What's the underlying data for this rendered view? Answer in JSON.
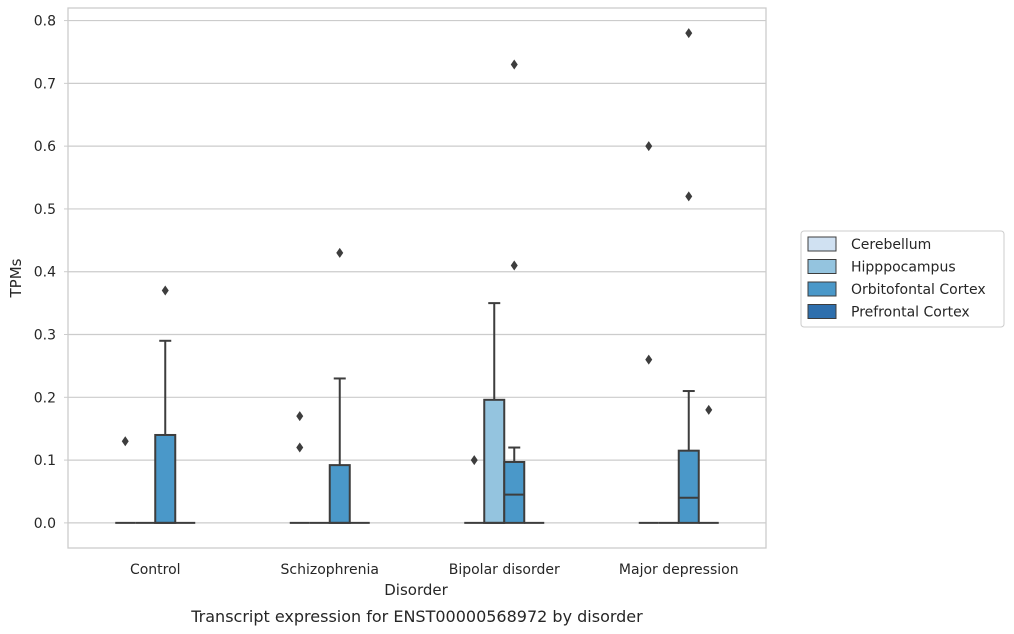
{
  "caption": "Transcript expression for ENST00000568972 by disorder",
  "chart_data": {
    "type": "box",
    "title": "",
    "xlabel": "Disorder",
    "ylabel": "TPMs",
    "ylim": [
      -0.04,
      0.82
    ],
    "yticks": [
      0.0,
      0.1,
      0.2,
      0.3,
      0.4,
      0.5,
      0.6,
      0.7,
      0.8
    ],
    "ytick_labels": [
      "0.0",
      "0.1",
      "0.2",
      "0.3",
      "0.4",
      "0.5",
      "0.6",
      "0.7",
      "0.8"
    ],
    "grid": "horizontal",
    "legend_position": "right",
    "categories": [
      "Control",
      "Schizophrenia",
      "Bipolar disorder",
      "Major depression"
    ],
    "series": [
      {
        "name": "Cerebellum",
        "color": "#d0e1f2",
        "boxes": [
          {
            "q1": 0,
            "median": 0,
            "q3": 0,
            "whisker_low": 0,
            "whisker_high": 0,
            "outliers": [
              0.13
            ]
          },
          {
            "q1": 0,
            "median": 0,
            "q3": 0,
            "whisker_low": 0,
            "whisker_high": 0,
            "outliers": [
              0.12,
              0.17
            ]
          },
          {
            "q1": 0,
            "median": 0,
            "q3": 0,
            "whisker_low": 0,
            "whisker_high": 0,
            "outliers": [
              0.1
            ]
          },
          {
            "q1": 0,
            "median": 0,
            "q3": 0,
            "whisker_low": 0,
            "whisker_high": 0,
            "outliers": [
              0.26,
              0.6
            ]
          }
        ]
      },
      {
        "name": "Hipppocampus",
        "color": "#94c4df",
        "boxes": [
          {
            "q1": 0,
            "median": 0,
            "q3": 0,
            "whisker_low": 0,
            "whisker_high": 0,
            "outliers": []
          },
          {
            "q1": 0,
            "median": 0,
            "q3": 0,
            "whisker_low": 0,
            "whisker_high": 0,
            "outliers": []
          },
          {
            "q1": 0,
            "median": 0,
            "q3": 0.196,
            "whisker_low": 0,
            "whisker_high": 0.35,
            "outliers": []
          },
          {
            "q1": 0,
            "median": 0,
            "q3": 0,
            "whisker_low": 0,
            "whisker_high": 0,
            "outliers": []
          }
        ]
      },
      {
        "name": "Orbitofontal Cortex",
        "color": "#4a98c9",
        "boxes": [
          {
            "q1": 0,
            "median": 0,
            "q3": 0.14,
            "whisker_low": 0,
            "whisker_high": 0.29,
            "outliers": [
              0.37
            ]
          },
          {
            "q1": 0,
            "median": 0,
            "q3": 0.092,
            "whisker_low": 0,
            "whisker_high": 0.23,
            "outliers": [
              0.43
            ]
          },
          {
            "q1": 0,
            "median": 0.045,
            "q3": 0.097,
            "whisker_low": 0,
            "whisker_high": 0.12,
            "outliers": [
              0.41,
              0.73
            ]
          },
          {
            "q1": 0,
            "median": 0.04,
            "q3": 0.115,
            "whisker_low": 0,
            "whisker_high": 0.21,
            "outliers": [
              0.52,
              0.78
            ]
          }
        ]
      },
      {
        "name": "Prefrontal Cortex",
        "color": "#2e6fad",
        "boxes": [
          {
            "q1": 0,
            "median": 0,
            "q3": 0,
            "whisker_low": 0,
            "whisker_high": 0,
            "outliers": []
          },
          {
            "q1": 0,
            "median": 0,
            "q3": 0,
            "whisker_low": 0,
            "whisker_high": 0,
            "outliers": []
          },
          {
            "q1": 0,
            "median": 0,
            "q3": 0,
            "whisker_low": 0,
            "whisker_high": 0,
            "outliers": []
          },
          {
            "q1": 0,
            "median": 0,
            "q3": 0,
            "whisker_low": 0,
            "whisker_high": 0,
            "outliers": [
              0.18
            ]
          }
        ]
      }
    ]
  }
}
